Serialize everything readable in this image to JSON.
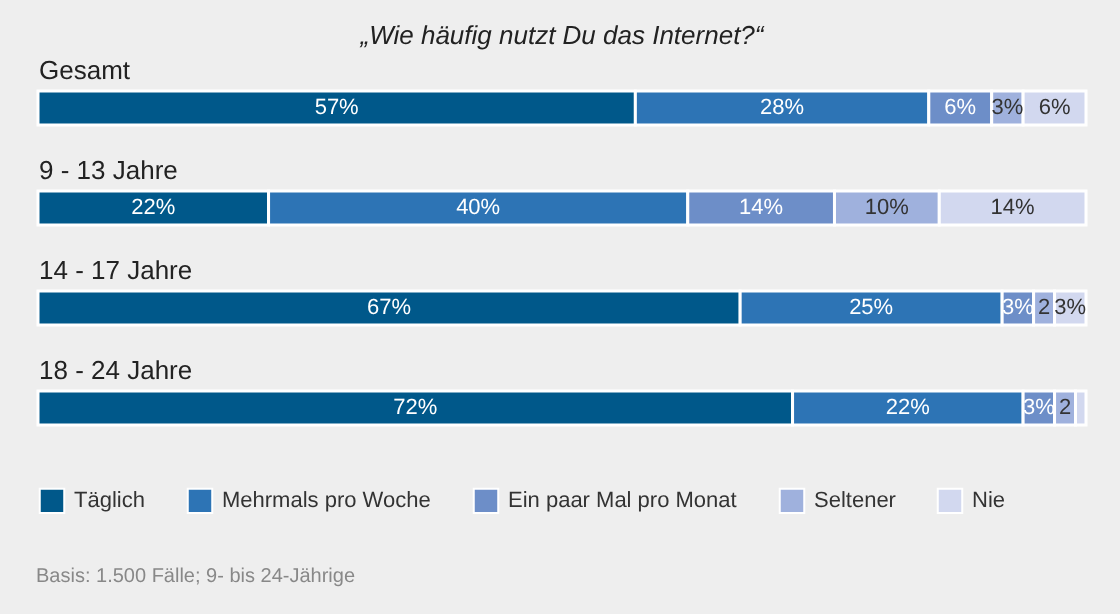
{
  "chart_data": {
    "type": "bar",
    "orientation": "horizontal",
    "stacked": true,
    "title": "„Wie häufig nutzt Du das Internet?“",
    "categories": [
      "Gesamt",
      "9 - 13 Jahre",
      "14 - 17 Jahre",
      "18 - 24 Jahre"
    ],
    "series": [
      {
        "name": "Täglich",
        "color": "#00588a",
        "values": [
          57,
          22,
          67,
          72
        ],
        "value_labels": [
          "57%",
          "22%",
          "67%",
          "72%"
        ]
      },
      {
        "name": "Mehrmals pro Woche",
        "color": "#2d74b5",
        "values": [
          28,
          40,
          25,
          22
        ],
        "value_labels": [
          "28%",
          "40%",
          "25%",
          "22%"
        ]
      },
      {
        "name": "Ein paar Mal pro Monat",
        "color": "#6d8ec8",
        "values": [
          6,
          14,
          3,
          3
        ],
        "value_labels": [
          "6%",
          "14%",
          "3%",
          "3%"
        ]
      },
      {
        "name": "Seltener",
        "color": "#9fb1dd",
        "values": [
          3,
          10,
          2,
          2
        ],
        "value_labels": [
          "3%",
          "10%",
          "2",
          "2"
        ]
      },
      {
        "name": "Nie",
        "color": "#d2d8ef",
        "values": [
          6,
          14,
          3,
          1
        ],
        "value_labels": [
          "6%",
          "14%",
          "3%",
          null
        ]
      }
    ],
    "legend": "bottom",
    "annotations": [
      "Basis: 1.500 Fälle; 9- bis 24-Jährige"
    ]
  }
}
